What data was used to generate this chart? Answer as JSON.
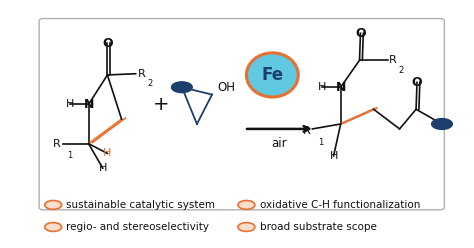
{
  "bg_color": "#ffffff",
  "box_edge_color": "#b0b0b0",
  "box_face_color": "#ffffff",
  "dark_blue": "#1c3f6e",
  "orange": "#e87030",
  "light_blue": "#60c8e0",
  "text_color": "#111111",
  "orange_h": "#e87030",
  "bullet_items_left": [
    "sustainable catalytic system",
    "regio- and stereoselectivity"
  ],
  "bullet_items_right": [
    "oxidative C-H functionalization",
    "broad substrate scope"
  ],
  "fe_label": "Fe",
  "air_label": "air"
}
